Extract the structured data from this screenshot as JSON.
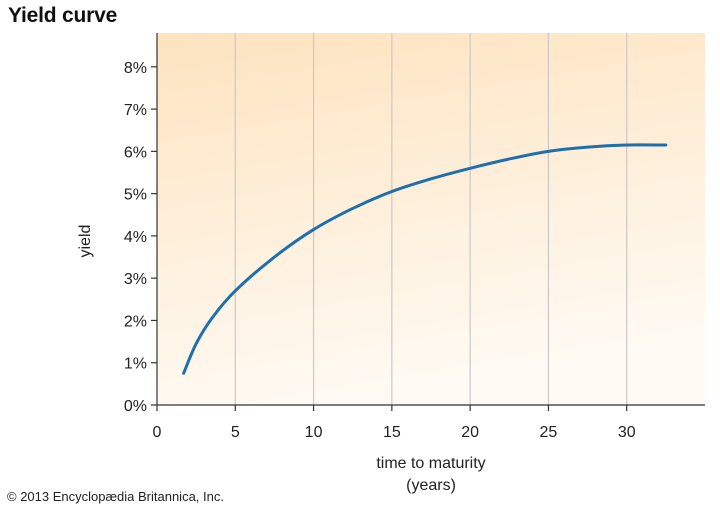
{
  "chart_data": {
    "type": "line",
    "title": "Yield curve",
    "xlabel": "time to maturity",
    "xlabel_unit": "(years)",
    "ylabel": "yield",
    "xlim": [
      0,
      35
    ],
    "ylim": [
      0,
      8.8
    ],
    "x_ticks": [
      0,
      5,
      10,
      15,
      20,
      25,
      30
    ],
    "x_tick_labels": [
      "0",
      "5",
      "10",
      "15",
      "20",
      "25",
      "30"
    ],
    "y_ticks": [
      0,
      1,
      2,
      3,
      4,
      5,
      6,
      7,
      8
    ],
    "y_tick_labels": [
      "0%",
      "1%",
      "2%",
      "3%",
      "4%",
      "5%",
      "6%",
      "7%",
      "8%"
    ],
    "grid": "vertical",
    "series": [
      {
        "x": [
          1.7,
          2.5,
          3.5,
          5,
          7.5,
          10,
          12.5,
          15,
          17.5,
          20,
          22.5,
          25,
          27.5,
          30,
          32.5
        ],
        "y": [
          0.75,
          1.45,
          2.05,
          2.7,
          3.5,
          4.15,
          4.65,
          5.05,
          5.35,
          5.6,
          5.82,
          6.0,
          6.1,
          6.15,
          6.15
        ],
        "color": "#1f6fae"
      }
    ],
    "background_gradient": [
      "#fde3bf",
      "#fffaf3"
    ]
  },
  "copyright": "© 2013 Encyclopædia Britannica, Inc."
}
